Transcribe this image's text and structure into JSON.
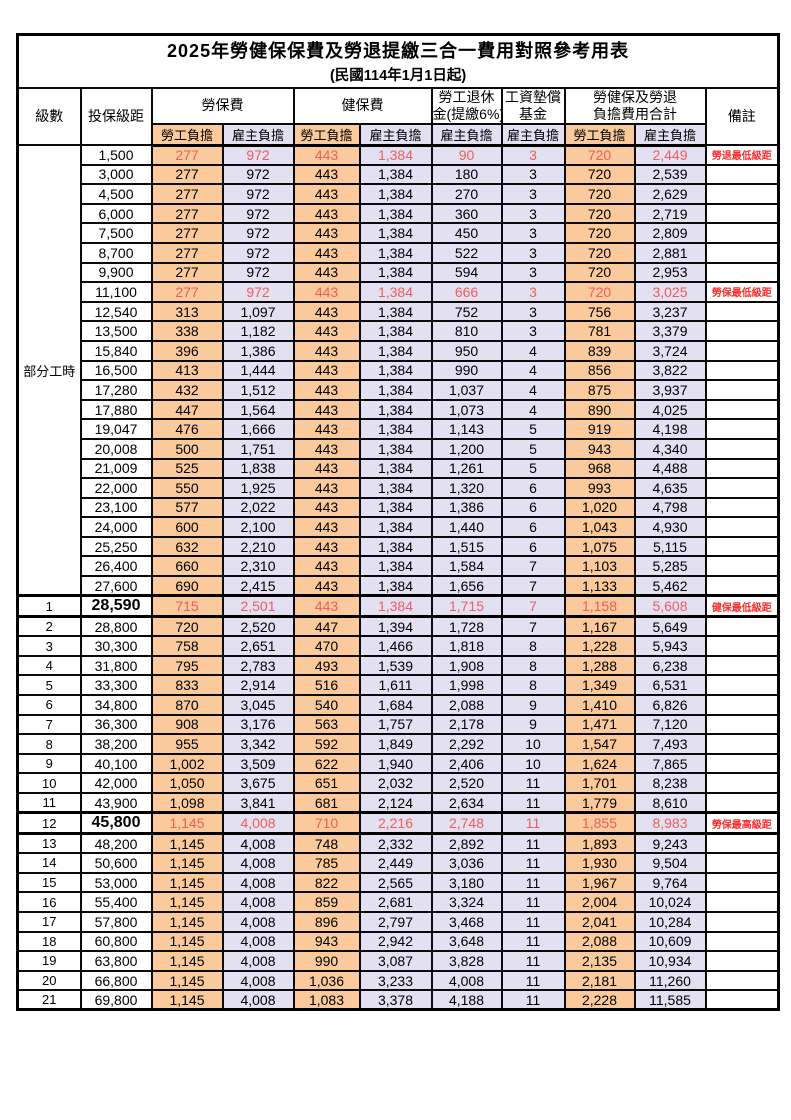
{
  "title": "2025年勞健保保費及勞退提繳三合一費用對照參考用表",
  "subtitle": "(民國114年1月1日起)",
  "columns": {
    "level": "級數",
    "bracket": "投保級距",
    "labor_fee": "勞保費",
    "health_fee": "健保費",
    "pension_line1": "勞工退休",
    "pension_line2": "金(提繳6%)",
    "wage_fund_line1": "工資墊償",
    "wage_fund_line2": "基金",
    "total_line1": "勞健保及勞退",
    "total_line2": "負擔費用合計",
    "note": "備註",
    "employee_share": "勞工負擔",
    "employer_share": "雇主負擔"
  },
  "part_time_label": "部分工時",
  "part_time_rowspan": 23,
  "colors": {
    "employee_bg": "#FACA9C",
    "employer_bg": "#E3E0F1",
    "highlight_value_text": "#EE5D5A",
    "note_text": "#FB2E2E",
    "grid": "#000000"
  },
  "value_column_kinds": [
    "emp",
    "er",
    "emp",
    "er",
    "er",
    "er",
    "emp",
    "er"
  ],
  "value_column_names": [
    "labor-employee",
    "labor-employer",
    "health-employee",
    "health-employer",
    "pension-employer",
    "wagefund-employer",
    "total-employee",
    "total-employer"
  ],
  "rows": [
    {
      "level": "",
      "bracket": "1,500",
      "values": [
        "277",
        "972",
        "443",
        "1,384",
        "90",
        "3",
        "720",
        "2,449"
      ],
      "note": "勞退最低級距",
      "red": true,
      "thick": false,
      "big": false
    },
    {
      "level": "",
      "bracket": "3,000",
      "values": [
        "277",
        "972",
        "443",
        "1,384",
        "180",
        "3",
        "720",
        "2,539"
      ],
      "note": "",
      "red": false,
      "thick": false,
      "big": false
    },
    {
      "level": "",
      "bracket": "4,500",
      "values": [
        "277",
        "972",
        "443",
        "1,384",
        "270",
        "3",
        "720",
        "2,629"
      ],
      "note": "",
      "red": false,
      "thick": false,
      "big": false
    },
    {
      "level": "",
      "bracket": "6,000",
      "values": [
        "277",
        "972",
        "443",
        "1,384",
        "360",
        "3",
        "720",
        "2,719"
      ],
      "note": "",
      "red": false,
      "thick": false,
      "big": false
    },
    {
      "level": "",
      "bracket": "7,500",
      "values": [
        "277",
        "972",
        "443",
        "1,384",
        "450",
        "3",
        "720",
        "2,809"
      ],
      "note": "",
      "red": false,
      "thick": false,
      "big": false
    },
    {
      "level": "",
      "bracket": "8,700",
      "values": [
        "277",
        "972",
        "443",
        "1,384",
        "522",
        "3",
        "720",
        "2,881"
      ],
      "note": "",
      "red": false,
      "thick": false,
      "big": false
    },
    {
      "level": "",
      "bracket": "9,900",
      "values": [
        "277",
        "972",
        "443",
        "1,384",
        "594",
        "3",
        "720",
        "2,953"
      ],
      "note": "",
      "red": false,
      "thick": false,
      "big": false
    },
    {
      "level": "",
      "bracket": "11,100",
      "values": [
        "277",
        "972",
        "443",
        "1,384",
        "666",
        "3",
        "720",
        "3,025"
      ],
      "note": "勞保最低級距",
      "red": true,
      "thick": false,
      "big": false
    },
    {
      "level": "",
      "bracket": "12,540",
      "values": [
        "313",
        "1,097",
        "443",
        "1,384",
        "752",
        "3",
        "756",
        "3,237"
      ],
      "note": "",
      "red": false,
      "thick": false,
      "big": false
    },
    {
      "level": "",
      "bracket": "13,500",
      "values": [
        "338",
        "1,182",
        "443",
        "1,384",
        "810",
        "3",
        "781",
        "3,379"
      ],
      "note": "",
      "red": false,
      "thick": false,
      "big": false
    },
    {
      "level": "",
      "bracket": "15,840",
      "values": [
        "396",
        "1,386",
        "443",
        "1,384",
        "950",
        "4",
        "839",
        "3,724"
      ],
      "note": "",
      "red": false,
      "thick": false,
      "big": false
    },
    {
      "level": "",
      "bracket": "16,500",
      "values": [
        "413",
        "1,444",
        "443",
        "1,384",
        "990",
        "4",
        "856",
        "3,822"
      ],
      "note": "",
      "red": false,
      "thick": false,
      "big": false
    },
    {
      "level": "",
      "bracket": "17,280",
      "values": [
        "432",
        "1,512",
        "443",
        "1,384",
        "1,037",
        "4",
        "875",
        "3,937"
      ],
      "note": "",
      "red": false,
      "thick": false,
      "big": false
    },
    {
      "level": "",
      "bracket": "17,880",
      "values": [
        "447",
        "1,564",
        "443",
        "1,384",
        "1,073",
        "4",
        "890",
        "4,025"
      ],
      "note": "",
      "red": false,
      "thick": false,
      "big": false
    },
    {
      "level": "",
      "bracket": "19,047",
      "values": [
        "476",
        "1,666",
        "443",
        "1,384",
        "1,143",
        "5",
        "919",
        "4,198"
      ],
      "note": "",
      "red": false,
      "thick": false,
      "big": false
    },
    {
      "level": "",
      "bracket": "20,008",
      "values": [
        "500",
        "1,751",
        "443",
        "1,384",
        "1,200",
        "5",
        "943",
        "4,340"
      ],
      "note": "",
      "red": false,
      "thick": false,
      "big": false
    },
    {
      "level": "",
      "bracket": "21,009",
      "values": [
        "525",
        "1,838",
        "443",
        "1,384",
        "1,261",
        "5",
        "968",
        "4,488"
      ],
      "note": "",
      "red": false,
      "thick": false,
      "big": false
    },
    {
      "level": "",
      "bracket": "22,000",
      "values": [
        "550",
        "1,925",
        "443",
        "1,384",
        "1,320",
        "6",
        "993",
        "4,635"
      ],
      "note": "",
      "red": false,
      "thick": false,
      "big": false
    },
    {
      "level": "",
      "bracket": "23,100",
      "values": [
        "577",
        "2,022",
        "443",
        "1,384",
        "1,386",
        "6",
        "1,020",
        "4,798"
      ],
      "note": "",
      "red": false,
      "thick": false,
      "big": false
    },
    {
      "level": "",
      "bracket": "24,000",
      "values": [
        "600",
        "2,100",
        "443",
        "1,384",
        "1,440",
        "6",
        "1,043",
        "4,930"
      ],
      "note": "",
      "red": false,
      "thick": false,
      "big": false
    },
    {
      "level": "",
      "bracket": "25,250",
      "values": [
        "632",
        "2,210",
        "443",
        "1,384",
        "1,515",
        "6",
        "1,075",
        "5,115"
      ],
      "note": "",
      "red": false,
      "thick": false,
      "big": false
    },
    {
      "level": "",
      "bracket": "26,400",
      "values": [
        "660",
        "2,310",
        "443",
        "1,384",
        "1,584",
        "7",
        "1,103",
        "5,285"
      ],
      "note": "",
      "red": false,
      "thick": false,
      "big": false
    },
    {
      "level": "",
      "bracket": "27,600",
      "values": [
        "690",
        "2,415",
        "443",
        "1,384",
        "1,656",
        "7",
        "1,133",
        "5,462"
      ],
      "note": "",
      "red": false,
      "thick": false,
      "big": false
    },
    {
      "level": "1",
      "bracket": "28,590",
      "values": [
        "715",
        "2,501",
        "443",
        "1,384",
        "1,715",
        "7",
        "1,158",
        "5,608"
      ],
      "note": "健保最低級距",
      "red": true,
      "thick": true,
      "big": true
    },
    {
      "level": "2",
      "bracket": "28,800",
      "values": [
        "720",
        "2,520",
        "447",
        "1,394",
        "1,728",
        "7",
        "1,167",
        "5,649"
      ],
      "note": "",
      "red": false,
      "thick": false,
      "big": false
    },
    {
      "level": "3",
      "bracket": "30,300",
      "values": [
        "758",
        "2,651",
        "470",
        "1,466",
        "1,818",
        "8",
        "1,228",
        "5,943"
      ],
      "note": "",
      "red": false,
      "thick": false,
      "big": false
    },
    {
      "level": "4",
      "bracket": "31,800",
      "values": [
        "795",
        "2,783",
        "493",
        "1,539",
        "1,908",
        "8",
        "1,288",
        "6,238"
      ],
      "note": "",
      "red": false,
      "thick": false,
      "big": false
    },
    {
      "level": "5",
      "bracket": "33,300",
      "values": [
        "833",
        "2,914",
        "516",
        "1,611",
        "1,998",
        "8",
        "1,349",
        "6,531"
      ],
      "note": "",
      "red": false,
      "thick": false,
      "big": false
    },
    {
      "level": "6",
      "bracket": "34,800",
      "values": [
        "870",
        "3,045",
        "540",
        "1,684",
        "2,088",
        "9",
        "1,410",
        "6,826"
      ],
      "note": "",
      "red": false,
      "thick": false,
      "big": false
    },
    {
      "level": "7",
      "bracket": "36,300",
      "values": [
        "908",
        "3,176",
        "563",
        "1,757",
        "2,178",
        "9",
        "1,471",
        "7,120"
      ],
      "note": "",
      "red": false,
      "thick": false,
      "big": false
    },
    {
      "level": "8",
      "bracket": "38,200",
      "values": [
        "955",
        "3,342",
        "592",
        "1,849",
        "2,292",
        "10",
        "1,547",
        "7,493"
      ],
      "note": "",
      "red": false,
      "thick": false,
      "big": false
    },
    {
      "level": "9",
      "bracket": "40,100",
      "values": [
        "1,002",
        "3,509",
        "622",
        "1,940",
        "2,406",
        "10",
        "1,624",
        "7,865"
      ],
      "note": "",
      "red": false,
      "thick": false,
      "big": false
    },
    {
      "level": "10",
      "bracket": "42,000",
      "values": [
        "1,050",
        "3,675",
        "651",
        "2,032",
        "2,520",
        "11",
        "1,701",
        "8,238"
      ],
      "note": "",
      "red": false,
      "thick": false,
      "big": false
    },
    {
      "level": "11",
      "bracket": "43,900",
      "values": [
        "1,098",
        "3,841",
        "681",
        "2,124",
        "2,634",
        "11",
        "1,779",
        "8,610"
      ],
      "note": "",
      "red": false,
      "thick": false,
      "big": false
    },
    {
      "level": "12",
      "bracket": "45,800",
      "values": [
        "1,145",
        "4,008",
        "710",
        "2,216",
        "2,748",
        "11",
        "1,855",
        "8,983"
      ],
      "note": "勞保最高級距",
      "red": true,
      "thick": true,
      "big": true
    },
    {
      "level": "13",
      "bracket": "48,200",
      "values": [
        "1,145",
        "4,008",
        "748",
        "2,332",
        "2,892",
        "11",
        "1,893",
        "9,243"
      ],
      "note": "",
      "red": false,
      "thick": false,
      "big": false
    },
    {
      "level": "14",
      "bracket": "50,600",
      "values": [
        "1,145",
        "4,008",
        "785",
        "2,449",
        "3,036",
        "11",
        "1,930",
        "9,504"
      ],
      "note": "",
      "red": false,
      "thick": false,
      "big": false
    },
    {
      "level": "15",
      "bracket": "53,000",
      "values": [
        "1,145",
        "4,008",
        "822",
        "2,565",
        "3,180",
        "11",
        "1,967",
        "9,764"
      ],
      "note": "",
      "red": false,
      "thick": false,
      "big": false
    },
    {
      "level": "16",
      "bracket": "55,400",
      "values": [
        "1,145",
        "4,008",
        "859",
        "2,681",
        "3,324",
        "11",
        "2,004",
        "10,024"
      ],
      "note": "",
      "red": false,
      "thick": false,
      "big": false
    },
    {
      "level": "17",
      "bracket": "57,800",
      "values": [
        "1,145",
        "4,008",
        "896",
        "2,797",
        "3,468",
        "11",
        "2,041",
        "10,284"
      ],
      "note": "",
      "red": false,
      "thick": false,
      "big": false
    },
    {
      "level": "18",
      "bracket": "60,800",
      "values": [
        "1,145",
        "4,008",
        "943",
        "2,942",
        "3,648",
        "11",
        "2,088",
        "10,609"
      ],
      "note": "",
      "red": false,
      "thick": false,
      "big": false
    },
    {
      "level": "19",
      "bracket": "63,800",
      "values": [
        "1,145",
        "4,008",
        "990",
        "3,087",
        "3,828",
        "11",
        "2,135",
        "10,934"
      ],
      "note": "",
      "red": false,
      "thick": false,
      "big": false
    },
    {
      "level": "20",
      "bracket": "66,800",
      "values": [
        "1,145",
        "4,008",
        "1,036",
        "3,233",
        "4,008",
        "11",
        "2,181",
        "11,260"
      ],
      "note": "",
      "red": false,
      "thick": false,
      "big": false
    },
    {
      "level": "21",
      "bracket": "69,800",
      "values": [
        "1,145",
        "4,008",
        "1,083",
        "3,378",
        "4,188",
        "11",
        "2,228",
        "11,585"
      ],
      "note": "",
      "red": false,
      "thick": false,
      "big": false
    }
  ]
}
